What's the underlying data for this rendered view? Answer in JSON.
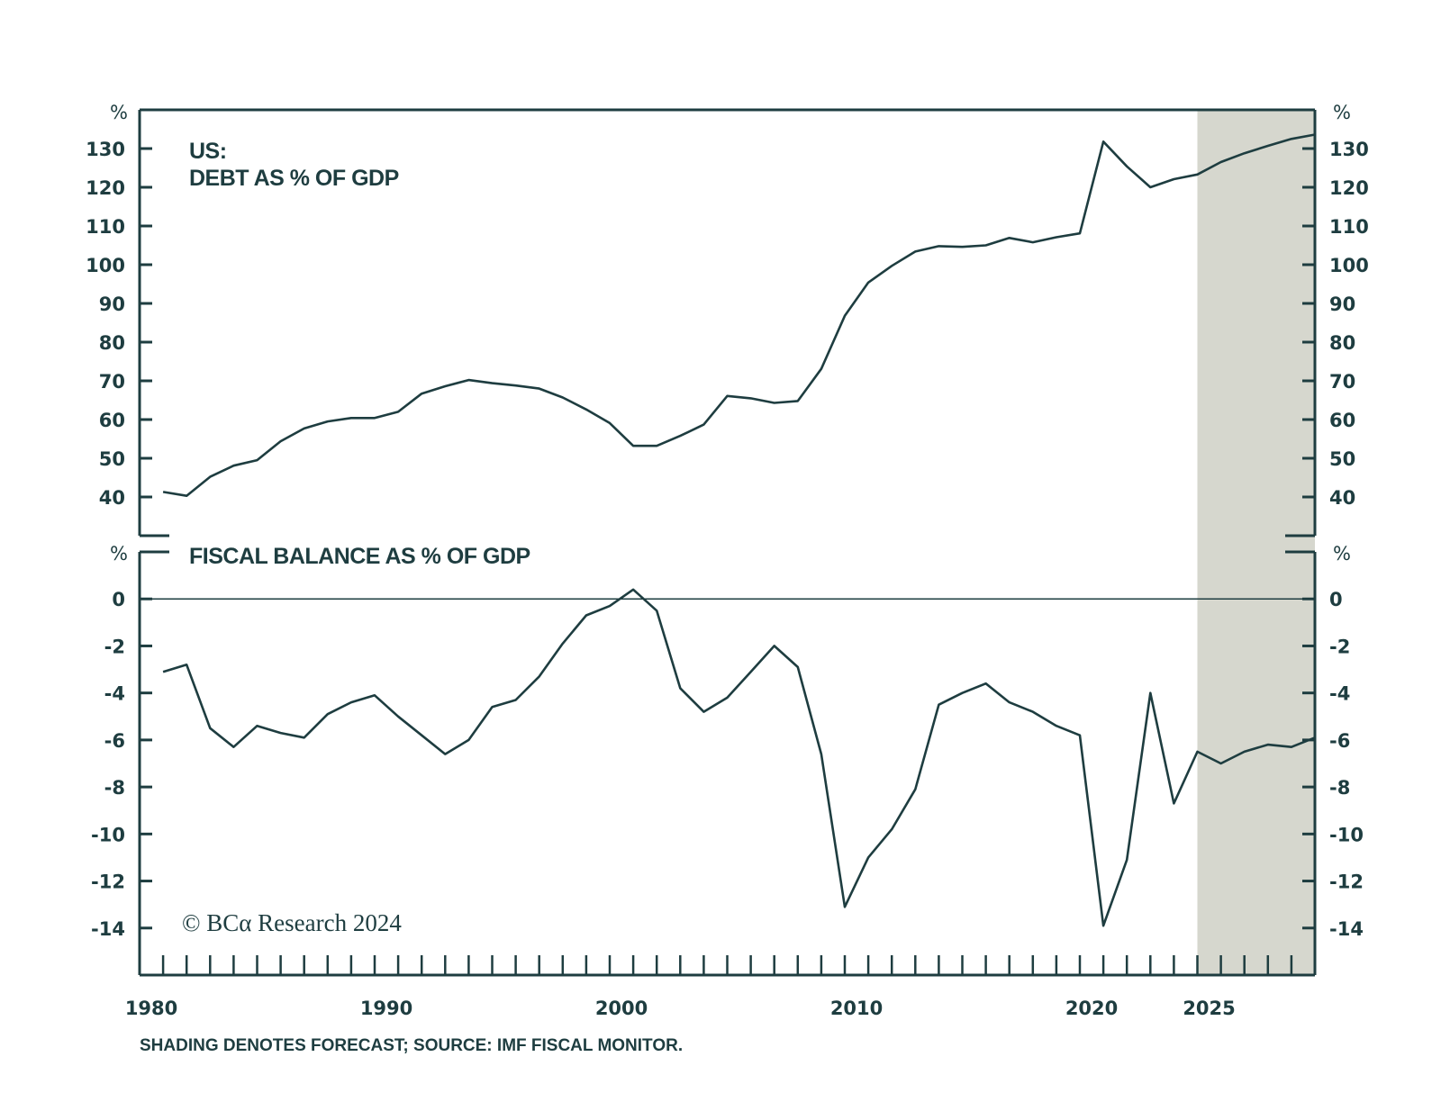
{
  "chart_data": {
    "type": "line",
    "title": "US: DEBT AS % OF GDP",
    "title_line1": "US:",
    "title_line2": "DEBT AS % OF GDP",
    "footnote": "SHADING DENOTES FORECAST; SOURCE: IMF FISCAL MONITOR.",
    "copyright": "© BCα Research 2024",
    "colors": {
      "line": "#1e3d40",
      "shading": "#d6d7ce",
      "axis": "#1e3d40"
    },
    "x": [
      1980,
      1981,
      1982,
      1983,
      1984,
      1985,
      1986,
      1987,
      1988,
      1989,
      1990,
      1991,
      1992,
      1993,
      1994,
      1995,
      1996,
      1997,
      1998,
      1999,
      2000,
      2001,
      2002,
      2003,
      2004,
      2005,
      2006,
      2007,
      2008,
      2009,
      2010,
      2011,
      2012,
      2013,
      2014,
      2015,
      2016,
      2017,
      2018,
      2019,
      2020,
      2021,
      2022,
      2023,
      2024,
      2025,
      2026,
      2027,
      2028,
      2029
    ],
    "x_range": [
      1980,
      2029
    ],
    "x_tick_labels": [
      "1980",
      "1990",
      "2000",
      "2010",
      "2020",
      "2025"
    ],
    "x_tick_label_years": [
      1980,
      1990,
      2000,
      2010,
      2020,
      2025
    ],
    "forecast_shading": {
      "start_year": 2024,
      "end_year": 2029,
      "label": "forecast"
    },
    "panels": [
      {
        "name": "debt",
        "title": "DEBT AS % OF GDP",
        "ylabel": "%",
        "ylim": [
          30,
          140
        ],
        "y_ticks": [
          40,
          50,
          60,
          70,
          80,
          90,
          100,
          110,
          120,
          130
        ],
        "series": [
          {
            "name": "US Debt as % of GDP",
            "values": [
              41.3,
              40.3,
              45.2,
              48.1,
              49.5,
              54.4,
              57.7,
              59.5,
              60.4,
              60.4,
              62.0,
              66.7,
              68.6,
              70.2,
              69.4,
              68.8,
              68.0,
              65.7,
              62.6,
              59.1,
              53.2,
              53.2,
              55.8,
              58.7,
              66.1,
              65.5,
              64.3,
              64.8,
              73.1,
              86.8,
              95.4,
              99.7,
              103.4,
              104.8,
              104.6,
              105.0,
              106.9,
              105.8,
              107.1,
              108.1,
              131.8,
              125.4,
              120.0,
              122.1,
              123.3,
              126.5,
              128.8,
              130.7,
              132.5,
              133.6
            ]
          }
        ]
      },
      {
        "name": "fiscal-balance",
        "title": "FISCAL BALANCE AS % OF GDP",
        "ylabel": "%",
        "ylim": [
          -16,
          2
        ],
        "y_ticks": [
          0,
          -2,
          -4,
          -6,
          -8,
          -10,
          -12,
          -14
        ],
        "zero_line": true,
        "series": [
          {
            "name": "US Fiscal Balance as % of GDP",
            "values": [
              -3.1,
              -2.8,
              -5.5,
              -6.3,
              -5.4,
              -5.7,
              -5.9,
              -4.9,
              -4.4,
              -4.1,
              -5.0,
              -5.8,
              -6.6,
              -6.0,
              -4.6,
              -4.3,
              -3.3,
              -1.9,
              -0.7,
              -0.3,
              0.4,
              -0.5,
              -3.8,
              -4.8,
              -4.2,
              -3.1,
              -2.0,
              -2.9,
              -6.6,
              -13.1,
              -11.0,
              -9.8,
              -8.1,
              -4.5,
              -4.0,
              -3.6,
              -4.4,
              -4.8,
              -5.4,
              -5.8,
              -13.9,
              -11.1,
              -4.0,
              -8.7,
              -6.5,
              -7.0,
              -6.5,
              -6.2,
              -6.3,
              -5.9
            ]
          }
        ]
      }
    ],
    "grid": false,
    "legend": "none"
  }
}
